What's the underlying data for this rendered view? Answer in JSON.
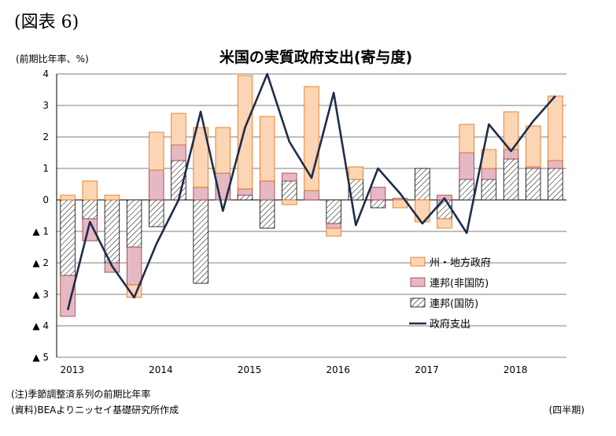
{
  "figure_label": "(図表 6)",
  "unit_label": "(前期比年率、%)",
  "notes": {
    "note": "(注)季節調整済系列の前期比年率",
    "source": "(資料)BEAよりニッセイ基礎研究所作成",
    "period": "(四半期)"
  },
  "colors": {
    "state_local": "#fcd5b4",
    "state_local_border": "#e46c0a",
    "federal_nondefense": "#e6b8c4",
    "federal_nondefense_border": "#943634",
    "federal_defense_hatch": "#000000",
    "total_line": "#1f2d4a",
    "grid": "#000000"
  },
  "chart_data": {
    "type": "bar",
    "title": "米国の実質政府支出(寄与度)",
    "ylim": [
      -5,
      4
    ],
    "y_ticks": [
      {
        "value": 4,
        "label": "4"
      },
      {
        "value": 3,
        "label": "3"
      },
      {
        "value": 2,
        "label": "2"
      },
      {
        "value": 1,
        "label": "1"
      },
      {
        "value": 0,
        "label": "0"
      },
      {
        "value": -1,
        "label": "▲ 1"
      },
      {
        "value": -2,
        "label": "▲ 2"
      },
      {
        "value": -3,
        "label": "▲ 3"
      },
      {
        "value": -4,
        "label": "▲ 4"
      },
      {
        "value": -5,
        "label": "▲ 5"
      }
    ],
    "x_year_labels": [
      {
        "label": "2013",
        "index": 0
      },
      {
        "label": "2014",
        "index": 4
      },
      {
        "label": "2015",
        "index": 8
      },
      {
        "label": "2016",
        "index": 12
      },
      {
        "label": "2017",
        "index": 16
      },
      {
        "label": "2018",
        "index": 20
      }
    ],
    "legend": [
      "州・地方政府",
      "連邦(非国防)",
      "連邦(国防)",
      "政府支出"
    ],
    "quarters": 23,
    "series": [
      {
        "name": "州・地方政府",
        "values": [
          0.15,
          0.6,
          0.15,
          -0.4,
          1.2,
          1.0,
          1.9,
          1.45,
          3.6,
          2.05,
          -0.15,
          3.3,
          -0.25,
          0.4,
          0.0,
          -0.25,
          -0.7,
          -0.3,
          0.9,
          0.6,
          1.2,
          1.3,
          2.05
        ]
      },
      {
        "name": "連邦(非国防)",
        "values": [
          -1.3,
          -0.7,
          -0.3,
          -1.2,
          0.95,
          0.5,
          0.4,
          0.85,
          0.2,
          0.6,
          0.25,
          0.3,
          -0.15,
          0.0,
          0.4,
          0.05,
          0.0,
          0.15,
          0.85,
          0.35,
          0.3,
          0.05,
          0.25
        ]
      },
      {
        "name": "連邦(国防)",
        "values": [
          -2.4,
          -0.6,
          -2.0,
          -1.5,
          -0.85,
          1.25,
          -2.65,
          0.0,
          0.15,
          -0.9,
          0.6,
          0.0,
          -0.75,
          0.65,
          -0.25,
          0.0,
          1.0,
          -0.6,
          0.65,
          0.65,
          1.3,
          1.0,
          1.0
        ]
      },
      {
        "name": "政府支出",
        "values": [
          -3.5,
          -0.7,
          -2.1,
          -3.1,
          -1.4,
          0.0,
          2.8,
          -0.35,
          2.3,
          4.0,
          1.85,
          0.7,
          3.4,
          -0.8,
          1.0,
          0.2,
          -0.75,
          0.05,
          -1.05,
          2.4,
          1.55,
          2.5,
          3.3
        ]
      }
    ]
  }
}
